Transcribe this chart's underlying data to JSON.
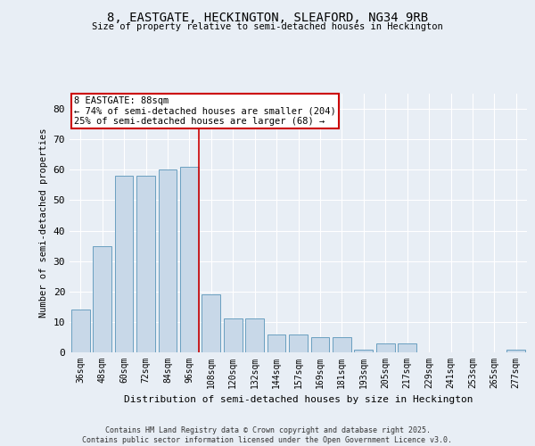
{
  "title1": "8, EASTGATE, HECKINGTON, SLEAFORD, NG34 9RB",
  "title2": "Size of property relative to semi-detached houses in Heckington",
  "xlabel": "Distribution of semi-detached houses by size in Heckington",
  "ylabel": "Number of semi-detached properties",
  "bar_categories": [
    "36sqm",
    "48sqm",
    "60sqm",
    "72sqm",
    "84sqm",
    "96sqm",
    "108sqm",
    "120sqm",
    "132sqm",
    "144sqm",
    "157sqm",
    "169sqm",
    "181sqm",
    "193sqm",
    "205sqm",
    "217sqm",
    "229sqm",
    "241sqm",
    "253sqm",
    "265sqm",
    "277sqm"
  ],
  "bar_values": [
    14,
    35,
    58,
    58,
    60,
    61,
    19,
    11,
    11,
    6,
    6,
    5,
    5,
    1,
    3,
    3,
    0,
    0,
    0,
    0,
    1
  ],
  "bar_color": "#c8d8e8",
  "bar_edge_color": "#6a9fc0",
  "red_line_index": 5,
  "annotation_text": "8 EASTGATE: 88sqm\n← 74% of semi-detached houses are smaller (204)\n25% of semi-detached houses are larger (68) →",
  "annotation_box_color": "#ffffff",
  "annotation_box_edge": "#cc0000",
  "red_line_color": "#cc0000",
  "ylim": [
    0,
    85
  ],
  "yticks": [
    0,
    10,
    20,
    30,
    40,
    50,
    60,
    70,
    80
  ],
  "footer_text": "Contains HM Land Registry data © Crown copyright and database right 2025.\nContains public sector information licensed under the Open Government Licence v3.0.",
  "bg_color": "#e8eef5",
  "plot_bg_color": "#e8eef5"
}
